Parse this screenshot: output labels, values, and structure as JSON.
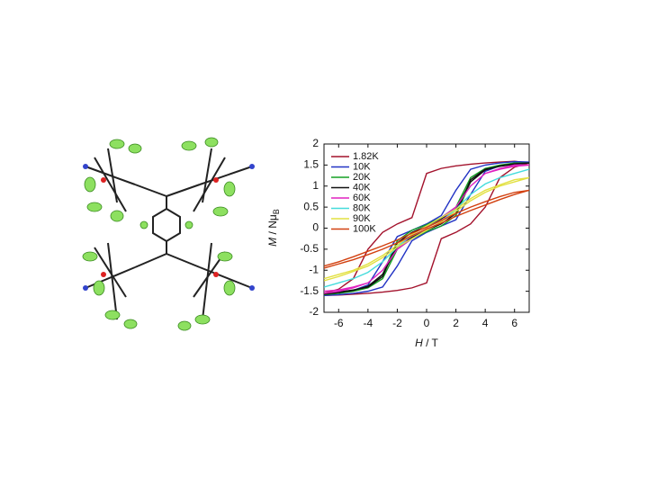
{
  "chart_data": {
    "type": "line",
    "x_label": {
      "italic": "H",
      "rest": " / T"
    },
    "y_label": {
      "italic": "M",
      "rest": " / Nμ",
      "sub": "B"
    },
    "x": [
      -7,
      -6,
      -5,
      -4,
      -3,
      -2,
      -1,
      0,
      1,
      2,
      3,
      4,
      5,
      6,
      7,
      6,
      5,
      4,
      3,
      2,
      1,
      0,
      -1,
      -2,
      -3,
      -4,
      -5,
      -6,
      -7
    ],
    "xlim": [
      -7,
      7
    ],
    "xticks": [
      -6,
      -4,
      -2,
      0,
      2,
      4,
      6
    ],
    "ylim": [
      -2,
      2
    ],
    "yticks": [
      -2,
      -1.5,
      -1,
      -0.5,
      0,
      0.5,
      1,
      1.5,
      2
    ],
    "legend": "top-left",
    "series": [
      {
        "name": "1.82K",
        "color": "#a3122c",
        "values": [
          -1.6,
          -1.59,
          -1.57,
          -1.55,
          -1.52,
          -1.48,
          -1.42,
          -1.3,
          -0.25,
          -0.1,
          0.1,
          0.5,
          1.2,
          1.45,
          1.55,
          1.59,
          1.57,
          1.55,
          1.52,
          1.48,
          1.42,
          1.3,
          0.25,
          0.1,
          -0.1,
          -0.5,
          -1.2,
          -1.45,
          -1.55
        ]
      },
      {
        "name": "10K",
        "color": "#2233c4",
        "values": [
          -1.6,
          -1.58,
          -1.55,
          -1.5,
          -1.4,
          -0.9,
          -0.3,
          -0.1,
          0.05,
          0.2,
          0.8,
          1.35,
          1.48,
          1.53,
          1.57,
          1.58,
          1.55,
          1.5,
          1.4,
          0.9,
          0.3,
          0.1,
          -0.05,
          -0.2,
          -0.8,
          -1.35,
          -1.48,
          -1.53,
          -1.57
        ]
      },
      {
        "name": "20K",
        "color": "#13a024",
        "values": [
          -1.58,
          -1.55,
          -1.5,
          -1.42,
          -1.2,
          -0.5,
          -0.25,
          -0.08,
          0.05,
          0.3,
          1.1,
          1.4,
          1.48,
          1.52,
          1.55,
          1.55,
          1.5,
          1.42,
          1.2,
          0.5,
          0.25,
          0.08,
          -0.05,
          -0.3,
          -1.1,
          -1.4,
          -1.48,
          -1.52,
          -1.55
        ]
      },
      {
        "name": "40K",
        "color": "#111111",
        "values": [
          -1.57,
          -1.53,
          -1.48,
          -1.38,
          -1.1,
          -0.45,
          -0.22,
          -0.05,
          0.1,
          0.35,
          1.15,
          1.4,
          1.47,
          1.52,
          1.55,
          1.53,
          1.48,
          1.38,
          1.1,
          0.45,
          0.22,
          0.05,
          -0.1,
          -0.35,
          -1.15,
          -1.4,
          -1.47,
          -1.52,
          -1.55
        ]
      },
      {
        "name": "60K",
        "color": "#e022c0",
        "values": [
          -1.55,
          -1.5,
          -1.42,
          -1.3,
          -1.0,
          -0.5,
          -0.25,
          -0.05,
          0.15,
          0.5,
          1.0,
          1.3,
          1.4,
          1.47,
          1.5,
          1.5,
          1.42,
          1.3,
          1.0,
          0.5,
          0.25,
          0.05,
          -0.15,
          -0.5,
          -1.0,
          -1.3,
          -1.4,
          -1.47,
          -1.5
        ]
      },
      {
        "name": "80K",
        "color": "#44dcdc",
        "values": [
          -1.4,
          -1.3,
          -1.2,
          -1.05,
          -0.8,
          -0.45,
          -0.25,
          -0.05,
          0.15,
          0.45,
          0.8,
          1.05,
          1.2,
          1.3,
          1.4,
          1.3,
          1.2,
          1.05,
          0.8,
          0.45,
          0.25,
          0.05,
          -0.15,
          -0.45,
          -0.8,
          -1.05,
          -1.2,
          -1.3,
          -1.4
        ]
      },
      {
        "name": "90K",
        "color": "#e2e040",
        "values": [
          -1.25,
          -1.15,
          -1.03,
          -0.9,
          -0.7,
          -0.45,
          -0.25,
          -0.05,
          0.15,
          0.4,
          0.65,
          0.85,
          1.0,
          1.1,
          1.2,
          1.15,
          1.03,
          0.9,
          0.7,
          0.45,
          0.25,
          0.05,
          -0.15,
          -0.4,
          -0.65,
          -0.85,
          -1.0,
          -1.1,
          -1.2
        ]
      },
      {
        "name": "100K",
        "color": "#d2400f",
        "values": [
          -0.95,
          -0.85,
          -0.75,
          -0.63,
          -0.5,
          -0.35,
          -0.18,
          -0.02,
          0.12,
          0.28,
          0.42,
          0.55,
          0.68,
          0.8,
          0.9,
          0.85,
          0.75,
          0.63,
          0.5,
          0.35,
          0.18,
          0.02,
          -0.12,
          -0.28,
          -0.42,
          -0.55,
          -0.68,
          -0.8,
          -0.9
        ]
      }
    ]
  }
}
